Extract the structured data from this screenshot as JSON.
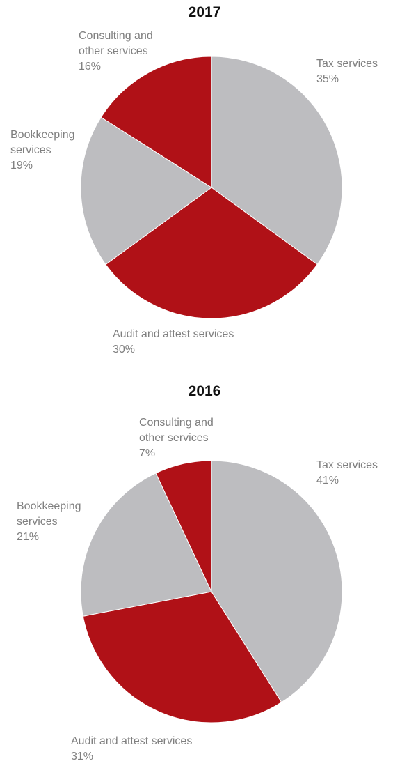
{
  "chart_data": [
    {
      "type": "pie",
      "title": "2017",
      "categories": [
        "Tax services",
        "Audit and attest services",
        "Bookkeeping services",
        "Consulting and other services"
      ],
      "labels": [
        "Tax services",
        "Audit and attest services",
        "Bookkeeping\nservices",
        "Consulting and\nother services"
      ],
      "values": [
        35,
        30,
        19,
        16
      ],
      "value_labels": [
        "35%",
        "30%",
        "19%",
        "16%"
      ],
      "colors": [
        "#bdbdc0",
        "#b01117",
        "#bdbdc0",
        "#b01117"
      ]
    },
    {
      "type": "pie",
      "title": "2016",
      "categories": [
        "Tax services",
        "Audit and attest services",
        "Bookkeeping services",
        "Consulting and other services"
      ],
      "labels": [
        "Tax services",
        "Audit and attest services",
        "Bookkeeping\nservices",
        "Consulting and\nother services"
      ],
      "values": [
        41,
        31,
        21,
        7
      ],
      "value_labels": [
        "41%",
        "31%",
        "21%",
        "7%"
      ],
      "colors": [
        "#bdbdc0",
        "#b01117",
        "#bdbdc0",
        "#b01117"
      ]
    }
  ]
}
